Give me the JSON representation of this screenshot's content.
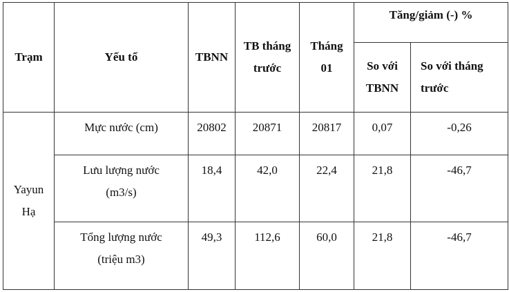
{
  "table": {
    "headers": {
      "station": "Trạm",
      "factor": "Yếu tố",
      "tbnn": "TBNN",
      "tb_prev": "TB tháng trước",
      "month": "Tháng 01",
      "change": "Tăng/giảm (-) %",
      "vs_tbnn": "So với TBNN",
      "vs_prev": "So với tháng trước"
    },
    "station": "Yayun Hạ",
    "rows": [
      [
        "Mực nước (cm)",
        "20802",
        "20871",
        "20817",
        "0,07",
        "-0,26"
      ],
      [
        "Lưu lượng nước (m3/s)",
        "18,4",
        "42,0",
        "22,4",
        "21,8",
        "-46,7"
      ],
      [
        "Tổng lượng nước (triệu m3)",
        "49,3",
        "112,6",
        "60,0",
        "21,8",
        "-46,7"
      ]
    ]
  }
}
